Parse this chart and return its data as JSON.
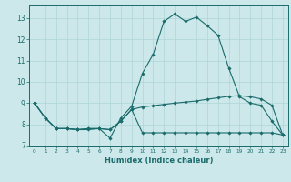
{
  "xlabel": "Humidex (Indice chaleur)",
  "bg_color": "#cce8ea",
  "grid_color": "#aed4d7",
  "line_color": "#1a6b6b",
  "xlim": [
    -0.5,
    23.5
  ],
  "ylim": [
    7.0,
    13.6
  ],
  "yticks": [
    7,
    8,
    9,
    10,
    11,
    12,
    13
  ],
  "xticks": [
    0,
    1,
    2,
    3,
    4,
    5,
    6,
    7,
    8,
    9,
    10,
    11,
    12,
    13,
    14,
    15,
    16,
    17,
    18,
    19,
    20,
    21,
    22,
    23
  ],
  "line1_x": [
    0,
    1,
    2,
    3,
    4,
    5,
    6,
    7,
    8,
    9,
    10,
    11,
    12,
    13,
    14,
    15,
    16,
    17,
    18,
    19,
    20,
    21,
    22,
    23
  ],
  "line1_y": [
    9.0,
    8.3,
    7.8,
    7.8,
    7.75,
    7.75,
    7.8,
    7.35,
    8.3,
    8.85,
    10.4,
    11.3,
    12.85,
    13.2,
    12.85,
    13.05,
    12.65,
    12.2,
    10.65,
    9.3,
    9.0,
    8.9,
    8.15,
    7.5
  ],
  "line2_x": [
    0,
    1,
    2,
    3,
    4,
    5,
    6,
    7,
    8,
    9,
    10,
    11,
    12,
    13,
    14,
    15,
    16,
    17,
    18,
    19,
    20,
    21,
    22,
    23
  ],
  "line2_y": [
    9.0,
    8.3,
    7.8,
    7.8,
    7.75,
    7.8,
    7.8,
    7.75,
    8.15,
    8.7,
    8.82,
    8.88,
    8.94,
    9.0,
    9.05,
    9.1,
    9.18,
    9.25,
    9.32,
    9.35,
    9.3,
    9.2,
    8.9,
    7.5
  ],
  "line3_x": [
    0,
    1,
    2,
    3,
    4,
    5,
    6,
    7,
    8,
    9,
    10,
    11,
    12,
    13,
    14,
    15,
    16,
    17,
    18,
    19,
    20,
    21,
    22,
    23
  ],
  "line3_y": [
    9.0,
    8.3,
    7.8,
    7.8,
    7.75,
    7.8,
    7.8,
    7.75,
    8.15,
    8.7,
    7.6,
    7.6,
    7.6,
    7.6,
    7.6,
    7.6,
    7.6,
    7.6,
    7.6,
    7.6,
    7.6,
    7.6,
    7.6,
    7.5
  ]
}
